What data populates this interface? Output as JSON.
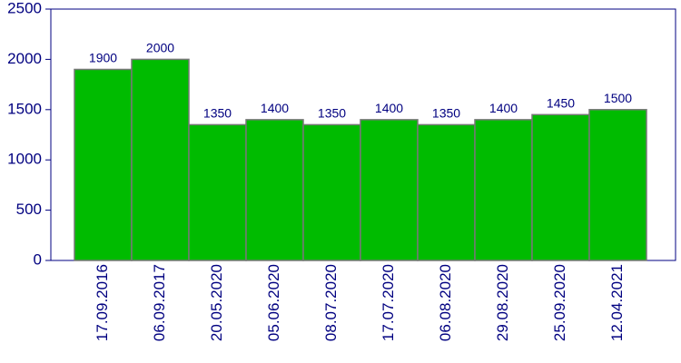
{
  "chart_data": {
    "type": "bar",
    "categories": [
      "17.09.2016",
      "06.09.2017",
      "20.05.2020",
      "05.06.2020",
      "08.07.2020",
      "17.07.2020",
      "06.08.2020",
      "29.08.2020",
      "25.09.2020",
      "12.04.2021"
    ],
    "values": [
      1900,
      2000,
      1350,
      1400,
      1350,
      1400,
      1350,
      1400,
      1450,
      1500
    ],
    "color": "#00bb00",
    "ylim": [
      0,
      2500
    ],
    "yticks": [
      0,
      500,
      1000,
      1500,
      2000,
      2500
    ],
    "grid": false
  }
}
